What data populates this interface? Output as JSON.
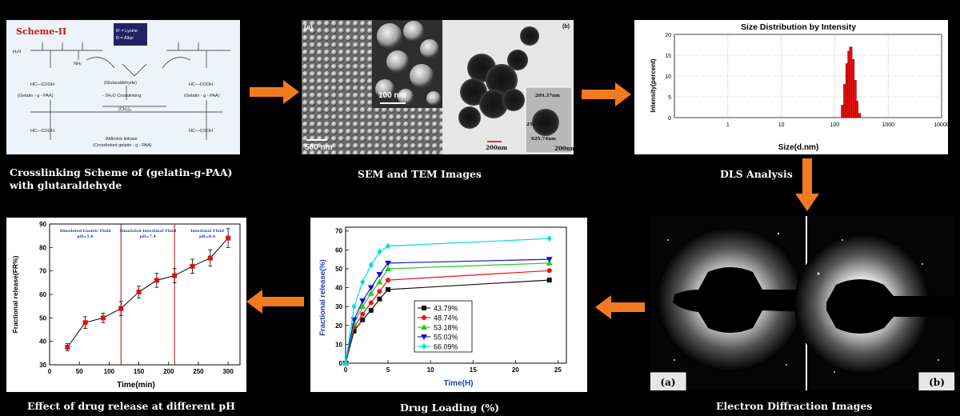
{
  "captions": {
    "scheme": "Crosslinking Scheme of (gelatin-g-PAA) with glutaraldehyde",
    "sem_tem": "SEM and TEM Images",
    "dls": "DLS Analysis",
    "diffraction": "Electron Diffraction Images",
    "loading": "Drug Loading (%)",
    "release": "Effect of drug release at different pH"
  },
  "scheme": {
    "title": "Scheme-II",
    "legend_r1": "R' = Lysine",
    "legend_r2": "R = Alkyl",
    "gelatin_left": "(Gelatin - g - PAA)",
    "gelatin_right": "(Gelatin - g - PAA)",
    "glutaraldehyde": "(Glutaraldehyde)",
    "condition": "- 2H₂O   Crosslinking",
    "linkage1": "Aldimine linkase",
    "linkage2": "(Crosslinked gelatin - g - PAA)",
    "h2n": "H₂N",
    "nh2": "NH₂",
    "cooh": "HC—COOH",
    "ch2": "(CH₂)₃"
  },
  "sem": {
    "label_a": "(a)",
    "label_b": "(b)",
    "scale_100": "100 nm",
    "scale_500": "500 nm",
    "scale_200a": "200nm",
    "scale_200b": "200nm",
    "m1": "209.37nm",
    "m2": "252.30nm",
    "m3": "625.74nm"
  },
  "dls_chart": {
    "chart_data": {
      "type": "bar",
      "title": "Size Distribution by Intensity",
      "xlabel": "Size(d.nm)",
      "ylabel": "Intensity(percent)",
      "xscale": "log",
      "xlim": [
        0.1,
        10000
      ],
      "ylim": [
        0,
        20
      ],
      "xticks": [
        "1",
        "10",
        "100",
        "1000",
        "10000"
      ],
      "yticks": [
        "0",
        "5",
        "10",
        "15",
        "20"
      ],
      "grid": true,
      "x": [
        140,
        155,
        170,
        185,
        200,
        220,
        240,
        260,
        290
      ],
      "values": [
        3,
        8,
        13,
        16,
        17,
        14,
        9,
        4,
        1
      ]
    }
  },
  "diffraction": {
    "label_a": "(a)",
    "label_b": "(b)"
  },
  "loading_chart": {
    "chart_data": {
      "type": "line",
      "xlabel": "Time(H)",
      "ylabel": "Fractional release(%)",
      "xlim": [
        0,
        26
      ],
      "ylim": [
        0,
        72
      ],
      "xticks": [
        "0",
        "5",
        "10",
        "15",
        "20",
        "25"
      ],
      "yticks": [
        "0",
        "10",
        "20",
        "30",
        "40",
        "50",
        "60",
        "70"
      ],
      "legend": "inside-center",
      "x": [
        0,
        1,
        2,
        3,
        4,
        5,
        24
      ],
      "series": [
        {
          "name": "43.79%",
          "color": "#111111",
          "marker": "square",
          "values": [
            0,
            17,
            23,
            28,
            34,
            39,
            44
          ]
        },
        {
          "name": "48.74%",
          "color": "#ee1111",
          "marker": "circle",
          "values": [
            0,
            19,
            26,
            32,
            38,
            44,
            49
          ]
        },
        {
          "name": "53.18%",
          "color": "#22cc22",
          "marker": "triangle",
          "values": [
            0,
            21,
            30,
            37,
            43,
            50,
            53
          ]
        },
        {
          "name": "55.03%",
          "color": "#1111cc",
          "marker": "triangle-down",
          "values": [
            0,
            23,
            33,
            40,
            47,
            53,
            55
          ]
        },
        {
          "name": "66.09%",
          "color": "#00dddd",
          "marker": "diamond",
          "values": [
            0,
            30,
            43,
            52,
            59,
            62,
            66
          ]
        }
      ]
    }
  },
  "release_chart": {
    "chart_data": {
      "type": "line",
      "xlabel": "Time(min)",
      "ylabel": "Fractional release(FR%)",
      "xlim": [
        0,
        320
      ],
      "ylim": [
        30,
        90
      ],
      "xticks": [
        "0",
        "50",
        "100",
        "150",
        "200",
        "250",
        "300"
      ],
      "yticks": [
        "30",
        "40",
        "50",
        "60",
        "70",
        "80",
        "90"
      ],
      "x": [
        30,
        60,
        90,
        120,
        150,
        180,
        210,
        240,
        270,
        300
      ],
      "values": [
        37.5,
        48,
        50,
        54,
        61,
        66,
        68,
        72,
        75.5,
        84
      ],
      "errors": [
        1.5,
        2.5,
        2,
        3,
        2.5,
        3,
        3,
        3,
        3.5,
        4
      ],
      "phase_lines": [
        120,
        210
      ],
      "regions": [
        {
          "name": "Simulated Gastric Fluid",
          "ph": "pH=1.8"
        },
        {
          "name": "Simulated Intestinal Fluid",
          "ph": "pH=7.4"
        },
        {
          "name": "Intestinal Fluid",
          "ph": "pH=8.6"
        }
      ]
    }
  }
}
